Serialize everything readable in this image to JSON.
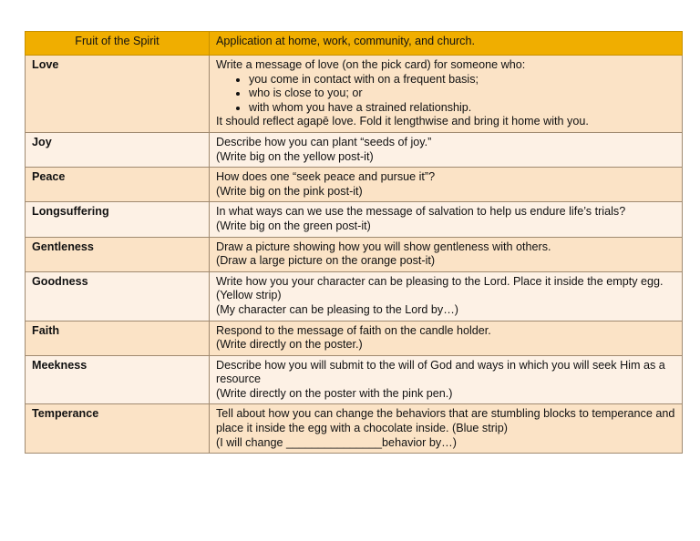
{
  "colors": {
    "header": "#f0ae00",
    "row_dark": "#fbe3c6",
    "row_light": "#fdf1e5"
  },
  "table": {
    "headers": [
      "Fruit of the Spirit",
      "Application at home, work, community, and church."
    ],
    "love": {
      "fruit": "Love",
      "intro": "Write a message of love (on the pick card) for someone who:",
      "bullets": [
        "you come in contact with on a frequent basis;",
        "who is close to you; or",
        "with whom you have a strained relationship."
      ],
      "outro": "It should reflect agapē love.  Fold it lengthwise and bring it home with you."
    },
    "rows": [
      {
        "fruit": "Joy",
        "lines": [
          "Describe how you can plant “seeds of joy.”",
          "(Write big on the yellow post-it)"
        ]
      },
      {
        "fruit": "Peace",
        "lines": [
          "How does one “seek peace and pursue it”?",
          "(Write big on the pink post-it)"
        ]
      },
      {
        "fruit": "Longsuffering",
        "lines": [
          "In what ways can we use the message of salvation to help us endure life’s trials?",
          "(Write big on the green post-it)"
        ]
      },
      {
        "fruit": "Gentleness",
        "lines": [
          "Draw a picture showing how you will show gentleness with others.",
          "(Draw a large picture on the orange post-it)"
        ]
      },
      {
        "fruit": "Goodness",
        "lines": [
          "Write how you your character can be pleasing to the Lord.  Place it inside the empty egg.  (Yellow strip)",
          "(My character can be pleasing to the Lord by…)"
        ]
      },
      {
        "fruit": "Faith",
        "lines": [
          "Respond to the message of faith on the candle holder.",
          "(Write directly on the poster.)"
        ]
      },
      {
        "fruit": "Meekness",
        "lines": [
          "Describe how you will submit to the will of God and ways in which you will seek Him as a resource",
          "(Write directly on the poster with the pink pen.)"
        ]
      },
      {
        "fruit": "Temperance",
        "lines": [
          "Tell about how you can change the behaviors that are stumbling blocks to temperance and place it inside the egg with a chocolate inside.  (Blue strip)",
          "(I will change _______________behavior by…)"
        ]
      }
    ]
  }
}
